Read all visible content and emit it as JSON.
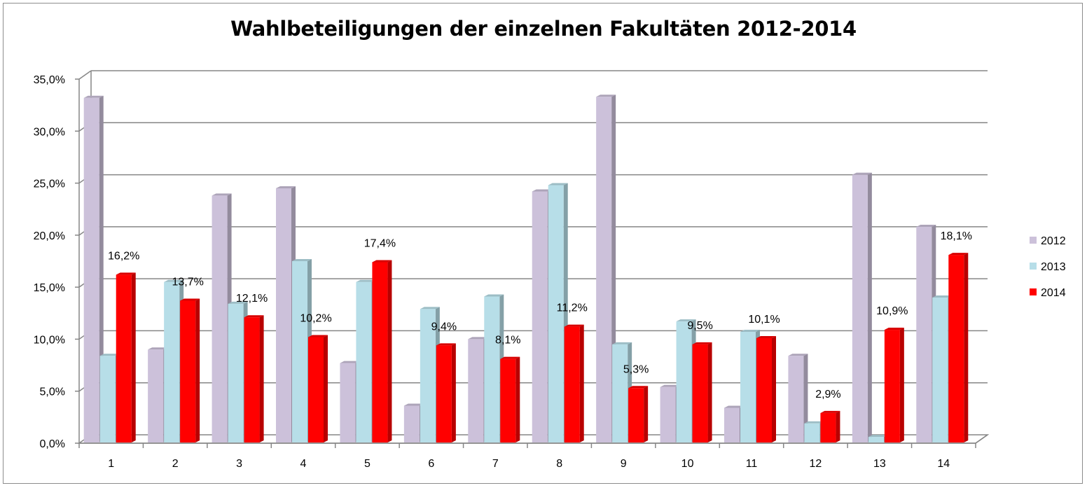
{
  "chart_data": {
    "type": "bar",
    "title": "Wahlbeteiligungen der einzelnen Fakultäten 2012-2014",
    "xlabel": "",
    "ylabel": "",
    "categories": [
      "1",
      "2",
      "3",
      "4",
      "5",
      "6",
      "7",
      "8",
      "9",
      "10",
      "11",
      "12",
      "13",
      "14"
    ],
    "ylim": [
      0,
      35
    ],
    "yticks": [
      0,
      5,
      10,
      15,
      20,
      25,
      30,
      35
    ],
    "ytick_labels": [
      "0,0%",
      "5,0%",
      "10,0%",
      "15,0%",
      "20,0%",
      "25,0%",
      "30,0%",
      "35,0%"
    ],
    "grid": true,
    "legend_position": "right",
    "series": [
      {
        "name": "2012",
        "color": "#ccc1da",
        "values": [
          33.2,
          9.0,
          23.8,
          24.5,
          7.7,
          3.6,
          10.0,
          24.2,
          33.3,
          5.4,
          3.4,
          8.4,
          25.8,
          20.8
        ]
      },
      {
        "name": "2013",
        "color": "#b7dee8",
        "values": [
          8.4,
          15.5,
          13.4,
          17.5,
          15.5,
          12.9,
          14.1,
          24.8,
          9.5,
          11.7,
          10.7,
          1.9,
          0.6,
          14.0
        ]
      },
      {
        "name": "2014",
        "color": "#ff0000",
        "values": [
          16.2,
          13.7,
          12.1,
          10.2,
          17.4,
          9.4,
          8.1,
          11.2,
          5.3,
          9.5,
          10.1,
          2.9,
          10.9,
          18.1
        ],
        "data_labels": [
          "16,2%",
          "13,7%",
          "12,1%",
          "10,2%",
          "17,4%",
          "9,4%",
          "8,1%",
          "11,2%",
          "5,3%",
          "9,5%",
          "10,1%",
          "2,9%",
          "10,9%",
          "18,1%"
        ]
      }
    ]
  }
}
